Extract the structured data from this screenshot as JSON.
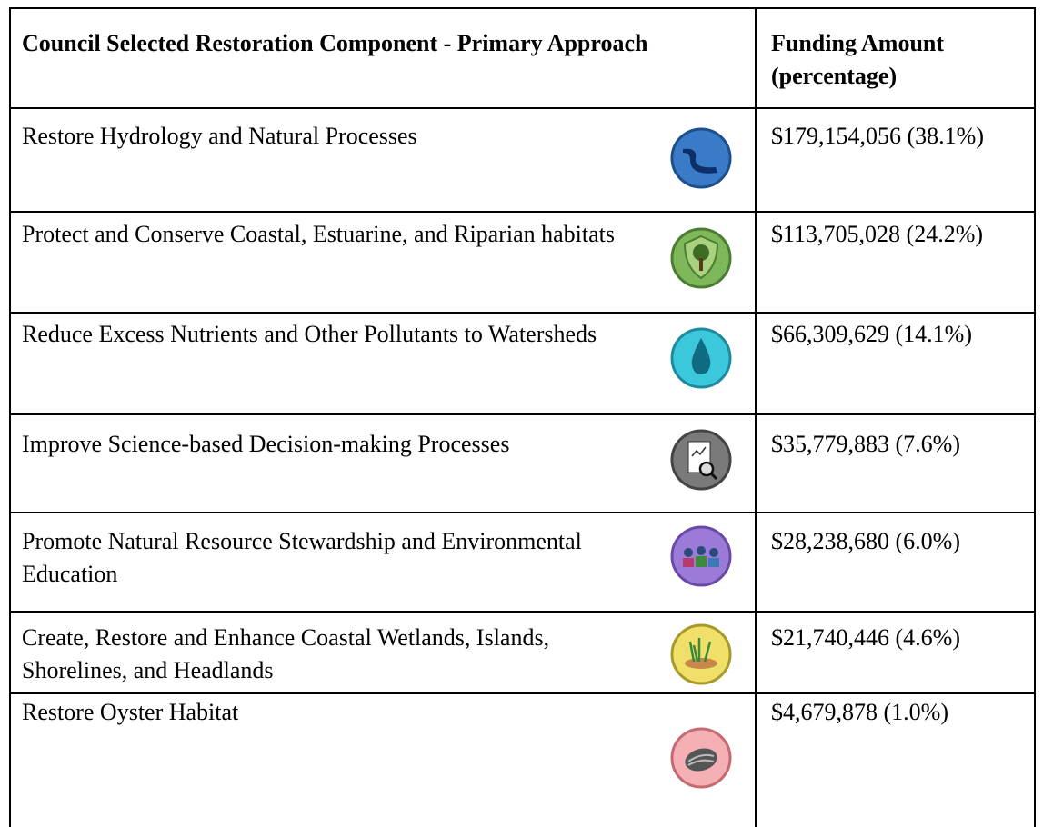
{
  "table": {
    "header": [
      "Council Selected Restoration Component - Primary Approach",
      "Funding Amount (percentage)"
    ],
    "rows": [
      [
        "Restore Hydrology and Natural Processes",
        "$179,154,056 (38.1%)"
      ],
      [
        "Protect and Conserve Coastal, Estuarine, and Riparian habitats",
        "$113,705,028 (24.2%)"
      ],
      [
        "Reduce Excess Nutrients and Other Pollutants to Watersheds",
        "$66,309,629 (14.1%)"
      ],
      [
        "Improve Science-based Decision-making Processes",
        "$35,779,883 (7.6%)"
      ],
      [
        "Promote Natural Resource Stewardship and Environmental Education",
        "$28,238,680 (6.0%)"
      ],
      [
        "Create, Restore and Enhance Coastal Wetlands, Islands, Shorelines, and Headlands",
        "$21,740,446 (4.6%)"
      ],
      [
        "Restore Oyster Habitat",
        "$4,679,878 (1.0%)"
      ]
    ]
  }
}
